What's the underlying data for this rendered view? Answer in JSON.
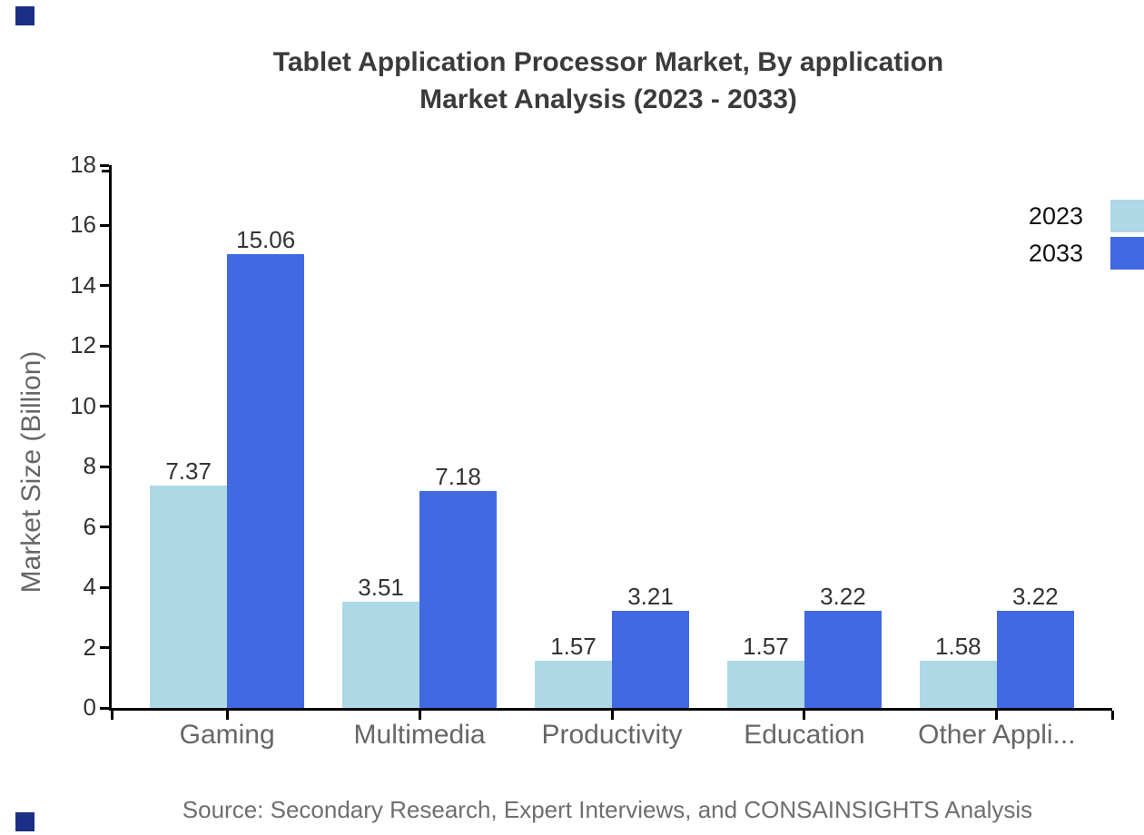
{
  "title": {
    "line1": "Tablet Application Processor Market, By application",
    "line2": "Market Analysis (2023 - 2033)"
  },
  "source": "Source: Secondary Research, Expert Interviews, and CONSAINSIGHTS Analysis",
  "colors": {
    "series_2023": "#ADD8E6",
    "series_2033": "#4169E1",
    "axis": "#000000",
    "title_text": "#3b3b3b",
    "axis_label_text": "#666666",
    "value_label_text": "#333333",
    "source_text": "#6e6e6e",
    "brand_mark": "#1c2e85"
  },
  "chart_data": {
    "type": "bar",
    "title": "Tablet Application Processor Market, By application Market Analysis (2023 - 2033)",
    "categories": [
      "Gaming",
      "Multimedia",
      "Productivity",
      "Education",
      "Other Appli..."
    ],
    "series": [
      {
        "name": "2023",
        "color": "#ADD8E6",
        "values": [
          7.37,
          3.51,
          1.57,
          1.57,
          1.58
        ]
      },
      {
        "name": "2033",
        "color": "#4169E1",
        "values": [
          15.06,
          7.18,
          3.21,
          3.22,
          3.22
        ]
      }
    ],
    "xlabel": "",
    "ylabel": "Market Size (Billion)",
    "ylim": [
      0,
      18
    ],
    "yticks": [
      0,
      2,
      4,
      6,
      8,
      10,
      12,
      14,
      16,
      18
    ],
    "grid": false,
    "legend_position": "top-right",
    "value_labels": true
  }
}
